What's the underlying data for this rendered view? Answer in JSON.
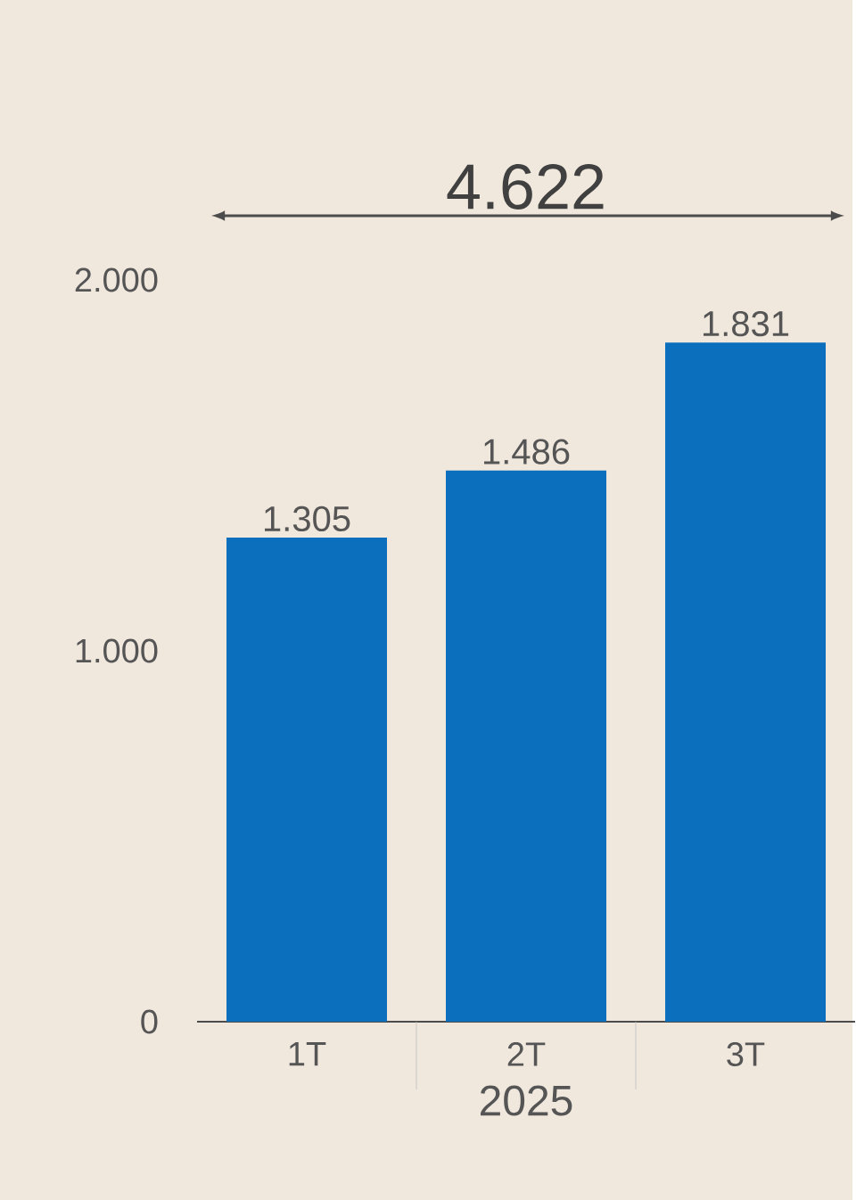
{
  "chart_data": {
    "type": "bar",
    "categories": [
      "1T",
      "2T",
      "3T"
    ],
    "values": [
      1305,
      1486,
      1831
    ],
    "color": "#0b6fbd",
    "value_labels": [
      "1.305",
      "1.486",
      "1.831"
    ],
    "xlabel": "2025",
    "ylim": [
      0,
      2000
    ],
    "yticks": [
      0,
      {
        "value": 1000,
        "label": "1.000"
      },
      {
        "value": 2000,
        "label": "2.000"
      }
    ],
    "annotations": [
      "4.622"
    ]
  }
}
